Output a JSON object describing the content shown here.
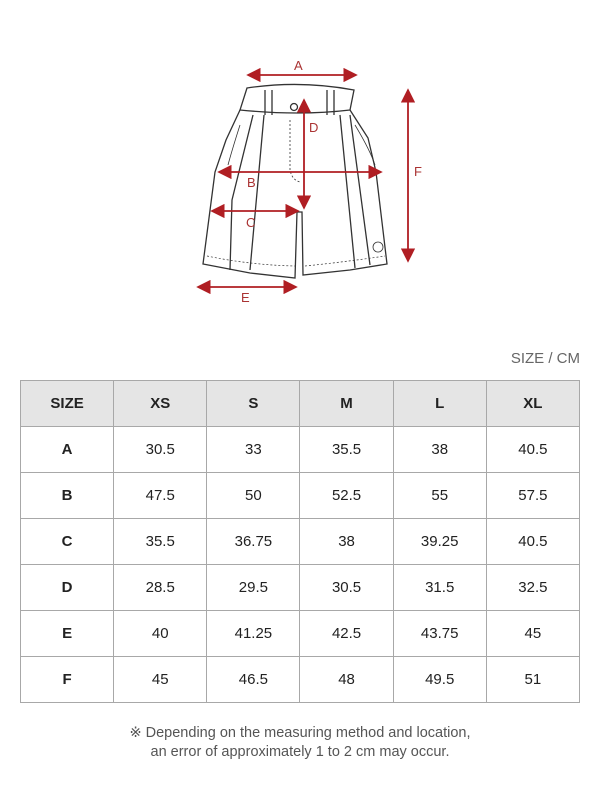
{
  "diagram": {
    "labels": {
      "A": "A",
      "B": "B",
      "C": "C",
      "D": "D",
      "E": "E",
      "F": "F"
    },
    "arrow_color": "#b01e23"
  },
  "unit_label": "SIZE / CM",
  "table": {
    "headers": [
      "SIZE",
      "XS",
      "S",
      "M",
      "L",
      "XL"
    ],
    "rows": [
      [
        "A",
        "30.5",
        "33",
        "35.5",
        "38",
        "40.5"
      ],
      [
        "B",
        "47.5",
        "50",
        "52.5",
        "55",
        "57.5"
      ],
      [
        "C",
        "35.5",
        "36.75",
        "38",
        "39.25",
        "40.5"
      ],
      [
        "D",
        "28.5",
        "29.5",
        "30.5",
        "31.5",
        "32.5"
      ],
      [
        "E",
        "40",
        "41.25",
        "42.5",
        "43.75",
        "45"
      ],
      [
        "F",
        "45",
        "46.5",
        "48",
        "49.5",
        "51"
      ]
    ]
  },
  "note": {
    "line1": "※ Depending on the measuring method and location,",
    "line2": "an error of approximately 1 to 2 cm may occur."
  }
}
